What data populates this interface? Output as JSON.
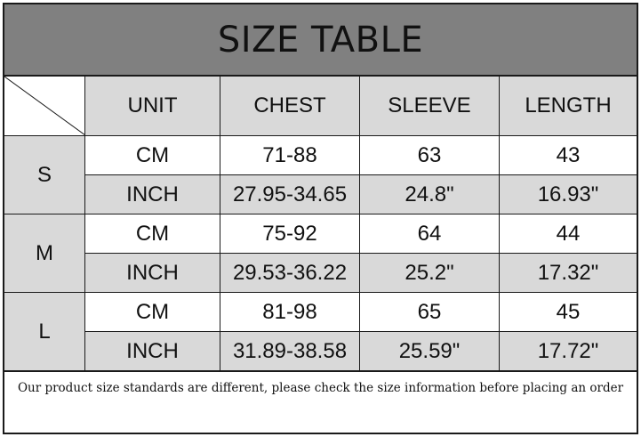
{
  "title": "SIZE TABLE",
  "headers": [
    "UNIT",
    "CHEST",
    "SLEEVE",
    "LENGTH"
  ],
  "sizes": [
    {
      "size": "S",
      "rows": [
        {
          "unit": "CM",
          "chest": "71-88",
          "sleeve": "63",
          "length": "43"
        },
        {
          "unit": "INCH",
          "chest": "27.95-34.65",
          "sleeve": "24.8\"",
          "length": "16.93\""
        }
      ]
    },
    {
      "size": "M",
      "rows": [
        {
          "unit": "CM",
          "chest": "75-92",
          "sleeve": "64",
          "length": "44"
        },
        {
          "unit": "INCH",
          "chest": "29.53-36.22",
          "sleeve": "25.2\"",
          "length": "17.32\""
        }
      ]
    },
    {
      "size": "L",
      "rows": [
        {
          "unit": "CM",
          "chest": "81-98",
          "sleeve": "65",
          "length": "45"
        },
        {
          "unit": "INCH",
          "chest": "31.89-38.58",
          "sleeve": "25.59\"",
          "length": "17.72\""
        }
      ]
    }
  ],
  "note": "Our product size standards are different, please check the size information before placing an order",
  "colors": {
    "title_bg": "#808080",
    "cell_gray": "#d9d9d9",
    "cell_white": "#ffffff"
  }
}
